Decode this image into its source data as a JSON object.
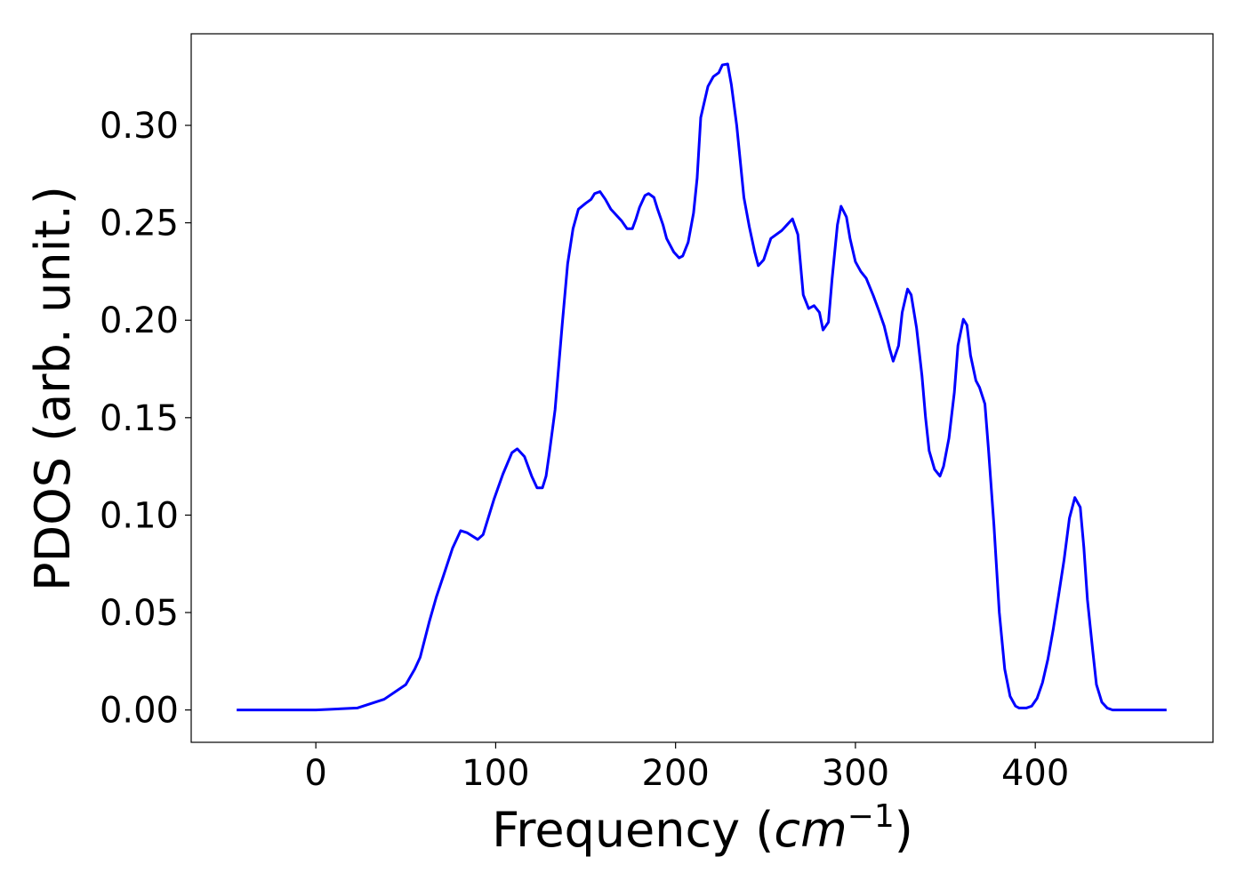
{
  "chart_data": {
    "type": "line",
    "xlabel": [
      "Frequency (",
      "cm",
      "−1",
      ")"
    ],
    "ylabel": "PDOS (arb. unit.)",
    "xlim": [
      -69.3,
      498.8
    ],
    "ylim": [
      -0.0166,
      0.347
    ],
    "xticks": [
      0,
      100,
      200,
      300,
      400
    ],
    "yticks": [
      {
        "value": 0,
        "label": "0.00"
      },
      0.05,
      {
        "value": 0.1,
        "label": "0.10"
      },
      0.15,
      {
        "value": 0.2,
        "label": "0.20"
      },
      0.25,
      {
        "value": 0.3,
        "label": "0.30"
      }
    ],
    "grid": false,
    "series": [
      {
        "color": "#0000ff",
        "x": [
          -44,
          0,
          23,
          38,
          50,
          55,
          58,
          63,
          67,
          71,
          76,
          80.5,
          84,
          90,
          93,
          99,
          104,
          109,
          112,
          116,
          120,
          123,
          126,
          128,
          130,
          133,
          137,
          140,
          143,
          146,
          150,
          153,
          155,
          158,
          161,
          164,
          167,
          170,
          173,
          176,
          178,
          180,
          183,
          185,
          188,
          190,
          193,
          195,
          199,
          202,
          204,
          207,
          210,
          212,
          214,
          218,
          221,
          224,
          226,
          229,
          231,
          234,
          238,
          241,
          244,
          246,
          249,
          253,
          259,
          262,
          265,
          268,
          271,
          274,
          277,
          280,
          282,
          285,
          287,
          290,
          292,
          295,
          297,
          300,
          303,
          306,
          310,
          313,
          316,
          319,
          321,
          324,
          326,
          329,
          331,
          334,
          337,
          339,
          341,
          344,
          347,
          349,
          352,
          355,
          357,
          360,
          362,
          364,
          367,
          369,
          372,
          374,
          377,
          380,
          383,
          386,
          389,
          391,
          395,
          398,
          401,
          404,
          407,
          410,
          413,
          416,
          419,
          422,
          425,
          427,
          429,
          432,
          434,
          437,
          440,
          443,
          473
        ],
        "values": [
          0,
          0,
          0.001,
          0.0055,
          0.013,
          0.021,
          0.027,
          0.045,
          0.058,
          0.069,
          0.083,
          0.092,
          0.091,
          0.0875,
          0.09,
          0.108,
          0.121,
          0.132,
          0.134,
          0.13,
          0.12,
          0.114,
          0.114,
          0.12,
          0.133,
          0.154,
          0.198,
          0.229,
          0.247,
          0.257,
          0.26,
          0.262,
          0.265,
          0.266,
          0.262,
          0.257,
          0.254,
          0.251,
          0.247,
          0.247,
          0.252,
          0.258,
          0.264,
          0.265,
          0.263,
          0.257,
          0.249,
          0.242,
          0.235,
          0.232,
          0.233,
          0.24,
          0.255,
          0.273,
          0.304,
          0.32,
          0.325,
          0.327,
          0.331,
          0.3315,
          0.321,
          0.3,
          0.263,
          0.248,
          0.235,
          0.228,
          0.231,
          0.242,
          0.246,
          0.249,
          0.252,
          0.244,
          0.213,
          0.206,
          0.2075,
          0.204,
          0.195,
          0.199,
          0.221,
          0.249,
          0.2585,
          0.253,
          0.242,
          0.23,
          0.225,
          0.2215,
          0.2125,
          0.205,
          0.197,
          0.1855,
          0.179,
          0.187,
          0.204,
          0.216,
          0.213,
          0.196,
          0.1715,
          0.15,
          0.133,
          0.1235,
          0.12,
          0.125,
          0.1395,
          0.163,
          0.187,
          0.2005,
          0.1975,
          0.182,
          0.169,
          0.1655,
          0.157,
          0.1335,
          0.095,
          0.05,
          0.021,
          0.007,
          0.002,
          0.001,
          0.001,
          0.002,
          0.006,
          0.014,
          0.026,
          0.0415,
          0.059,
          0.077,
          0.0985,
          0.109,
          0.104,
          0.0835,
          0.0565,
          0.03,
          0.013,
          0.004,
          0.001,
          0,
          0
        ]
      }
    ]
  }
}
